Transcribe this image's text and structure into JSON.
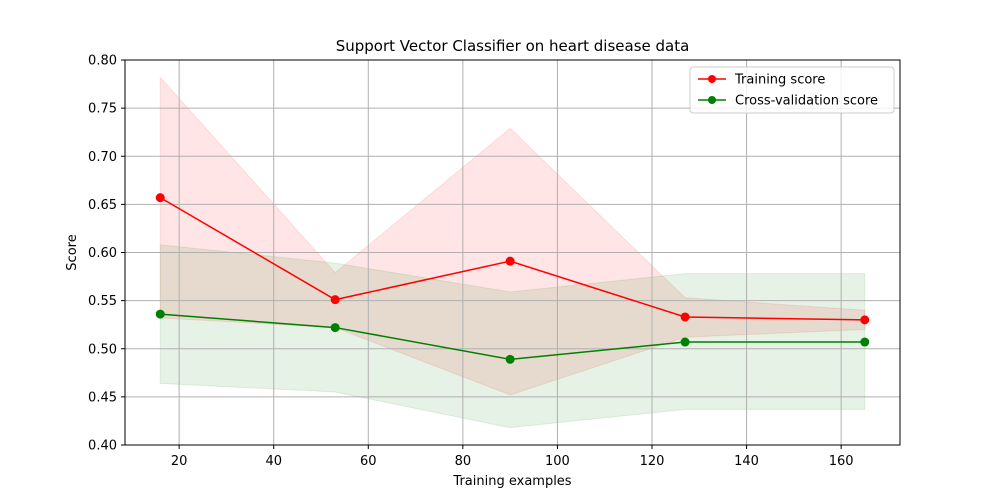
{
  "chart_data": {
    "type": "line",
    "title": "Support Vector Classifier on heart disease data",
    "xlabel": "Training examples",
    "ylabel": "Score",
    "xlim": [
      8.55,
      172.45
    ],
    "ylim": [
      0.4,
      0.8
    ],
    "xticks": [
      20,
      40,
      60,
      80,
      100,
      120,
      140,
      160
    ],
    "yticks": [
      0.4,
      0.45,
      0.5,
      0.55,
      0.6,
      0.65,
      0.7,
      0.75,
      0.8
    ],
    "xtick_labels": [
      "20",
      "40",
      "60",
      "80",
      "100",
      "120",
      "140",
      "160"
    ],
    "ytick_labels": [
      "0.40",
      "0.45",
      "0.50",
      "0.55",
      "0.60",
      "0.65",
      "0.70",
      "0.75",
      "0.80"
    ],
    "grid": true,
    "legend_position": "top-right",
    "x": [
      16,
      53,
      90,
      127,
      165
    ],
    "series": [
      {
        "name": "Training score",
        "color": "#ff0000",
        "fill_color": "#ff0000",
        "values": [
          0.657,
          0.551,
          0.591,
          0.533,
          0.53
        ],
        "band_low": [
          0.532,
          0.522,
          0.452,
          0.512,
          0.52
        ],
        "band_high": [
          0.782,
          0.579,
          0.729,
          0.553,
          0.54
        ]
      },
      {
        "name": "Cross-validation score",
        "color": "#008000",
        "fill_color": "#008000",
        "values": [
          0.536,
          0.522,
          0.489,
          0.507,
          0.507
        ],
        "band_low": [
          0.464,
          0.455,
          0.418,
          0.437,
          0.437
        ],
        "band_high": [
          0.608,
          0.589,
          0.559,
          0.578,
          0.578
        ]
      }
    ]
  }
}
